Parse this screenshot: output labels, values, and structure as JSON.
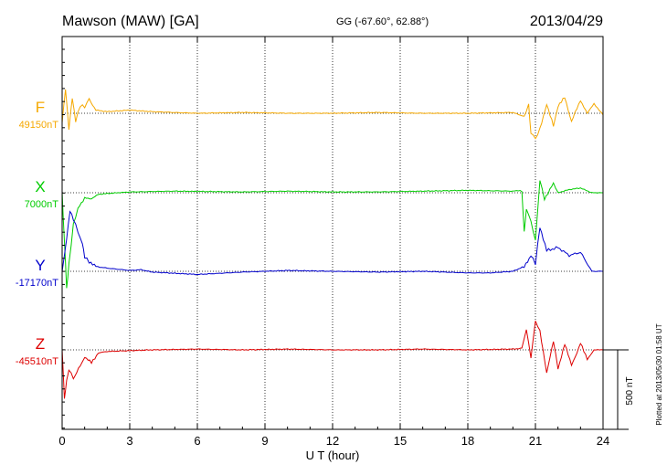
{
  "header": {
    "station": "Mawson (MAW)  [GA]",
    "coords": "GG (-67.60°,  62.88°)",
    "date": "2013/04/29"
  },
  "footer": {
    "plotted_note": "Plotted at 2013/05/30 01:58 UT"
  },
  "chart_data": {
    "type": "line",
    "title": "Mawson (MAW)  [GA]",
    "xlabel": "U T (hour)",
    "xlim": [
      0,
      24
    ],
    "xticks": [
      "0",
      "3",
      "6",
      "9",
      "12",
      "15",
      "18",
      "21",
      "24"
    ],
    "scale_bar_label": "500 nT",
    "scale_bar_nT": 500,
    "grid": "dotted vertical at every 3 hours",
    "series": [
      {
        "name": "F",
        "baseline_label": "49150nT",
        "color": "#f5a800",
        "x": [
          0,
          0.15,
          0.3,
          0.45,
          0.6,
          0.8,
          1.0,
          1.2,
          1.5,
          2.0,
          3.0,
          4.0,
          6.0,
          8.0,
          10.0,
          12.0,
          14.0,
          16.0,
          18.0,
          20.0,
          20.5,
          20.7,
          20.8,
          21.0,
          21.2,
          21.5,
          21.8,
          22.0,
          22.3,
          22.6,
          23.0,
          23.3,
          23.6,
          24.0
        ],
        "values": [
          -60,
          150,
          -100,
          100,
          -50,
          50,
          40,
          90,
          20,
          10,
          20,
          10,
          0,
          5,
          0,
          0,
          5,
          0,
          0,
          5,
          -20,
          50,
          -120,
          -160,
          -100,
          60,
          -80,
          40,
          100,
          -50,
          80,
          0,
          60,
          -10
        ]
      },
      {
        "name": "X",
        "baseline_label": "7000nT",
        "color": "#00cc00",
        "x": [
          0,
          0.1,
          0.2,
          0.3,
          0.5,
          0.7,
          1.0,
          1.3,
          1.6,
          2.0,
          3.0,
          5.0,
          8.0,
          10.0,
          12.0,
          14.0,
          16.0,
          18.0,
          20.0,
          20.4,
          20.5,
          20.6,
          20.8,
          21.0,
          21.2,
          21.4,
          21.8,
          22.0,
          22.5,
          23.0,
          23.5,
          24.0
        ],
        "values": [
          0,
          -300,
          -600,
          -450,
          -200,
          -100,
          -30,
          -40,
          -10,
          -5,
          5,
          10,
          5,
          10,
          5,
          5,
          10,
          15,
          10,
          15,
          -250,
          -100,
          -180,
          -300,
          80,
          -40,
          60,
          0,
          20,
          30,
          0,
          0
        ]
      },
      {
        "name": "Y",
        "baseline_label": "-17170nT",
        "color": "#0000cc",
        "x": [
          0,
          0.2,
          0.35,
          0.5,
          0.7,
          0.9,
          1.0,
          1.2,
          1.5,
          2.0,
          3.0,
          3.5,
          4.0,
          6.0,
          8.0,
          10.0,
          12.0,
          14.0,
          16.0,
          18.0,
          19.0,
          20.0,
          20.5,
          20.8,
          21.0,
          21.2,
          21.5,
          22.0,
          22.5,
          23.0,
          23.5,
          24.0
        ],
        "values": [
          0,
          200,
          380,
          330,
          250,
          170,
          90,
          60,
          30,
          20,
          5,
          10,
          -5,
          -20,
          -5,
          5,
          0,
          -5,
          0,
          -10,
          -10,
          0,
          30,
          100,
          50,
          280,
          130,
          150,
          100,
          120,
          0,
          0
        ]
      },
      {
        "name": "Z",
        "baseline_label": "-45510nT",
        "color": "#dd0000",
        "x": [
          0,
          0.1,
          0.2,
          0.3,
          0.5,
          0.8,
          1.0,
          1.3,
          1.6,
          2.0,
          3.0,
          4.0,
          6.0,
          8.0,
          10.0,
          12.0,
          14.0,
          16.0,
          18.0,
          20.0,
          20.4,
          20.6,
          20.8,
          21.0,
          21.2,
          21.5,
          21.8,
          22.0,
          22.3,
          22.6,
          23.0,
          23.3,
          23.6,
          24.0
        ],
        "values": [
          0,
          -300,
          -200,
          -120,
          -180,
          -100,
          -50,
          -80,
          -20,
          -10,
          -5,
          0,
          5,
          0,
          5,
          0,
          0,
          5,
          0,
          5,
          10,
          130,
          -50,
          180,
          120,
          -150,
          60,
          -120,
          40,
          -100,
          40,
          -60,
          0,
          0
        ]
      }
    ]
  }
}
